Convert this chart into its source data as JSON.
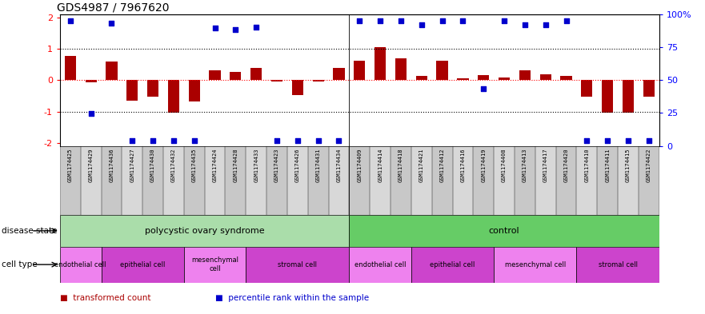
{
  "title": "GDS4987 / 7967620",
  "samples": [
    "GSM1174425",
    "GSM1174429",
    "GSM1174436",
    "GSM1174427",
    "GSM1174430",
    "GSM1174432",
    "GSM1174435",
    "GSM1174424",
    "GSM1174428",
    "GSM1174433",
    "GSM1174423",
    "GSM1174426",
    "GSM1174431",
    "GSM1174434",
    "GSM1174409",
    "GSM1174414",
    "GSM1174418",
    "GSM1174421",
    "GSM1174412",
    "GSM1174416",
    "GSM1174419",
    "GSM1174408",
    "GSM1174413",
    "GSM1174417",
    "GSM1174420",
    "GSM1174410",
    "GSM1174411",
    "GSM1174415",
    "GSM1174422"
  ],
  "bar_values": [
    0.78,
    -0.08,
    0.58,
    -0.65,
    -0.52,
    -1.05,
    -0.68,
    0.32,
    0.27,
    0.38,
    -0.05,
    -0.48,
    -0.05,
    0.38,
    0.62,
    1.05,
    0.68,
    0.12,
    0.62,
    0.05,
    0.15,
    0.08,
    0.32,
    0.18,
    0.12,
    -0.52,
    -1.05,
    -1.05,
    -0.52
  ],
  "dot_values": [
    1.88,
    -1.07,
    1.82,
    -1.92,
    -1.92,
    -1.92,
    -1.92,
    1.65,
    1.6,
    1.68,
    -1.92,
    -1.92,
    -1.92,
    -1.92,
    1.88,
    1.88,
    1.88,
    1.75,
    1.88,
    1.88,
    -0.28,
    1.88,
    1.75,
    1.75,
    1.88,
    -1.92,
    -1.92,
    -1.92,
    -1.92
  ],
  "disease_state_groups": [
    {
      "label": "polycystic ovary syndrome",
      "start": 0,
      "end": 14,
      "color": "#aaddaa"
    },
    {
      "label": "control",
      "start": 14,
      "end": 29,
      "color": "#66cc66"
    }
  ],
  "cell_type_groups": [
    {
      "label": "endothelial cell",
      "start": 0,
      "end": 2,
      "color": "#ee82ee"
    },
    {
      "label": "epithelial cell",
      "start": 2,
      "end": 6,
      "color": "#cc44cc"
    },
    {
      "label": "mesenchymal\ncell",
      "start": 6,
      "end": 9,
      "color": "#ee82ee"
    },
    {
      "label": "stromal cell",
      "start": 9,
      "end": 14,
      "color": "#cc44cc"
    },
    {
      "label": "endothelial cell",
      "start": 14,
      "end": 17,
      "color": "#ee82ee"
    },
    {
      "label": "epithelial cell",
      "start": 17,
      "end": 21,
      "color": "#cc44cc"
    },
    {
      "label": "mesenchymal cell",
      "start": 21,
      "end": 25,
      "color": "#ee82ee"
    },
    {
      "label": "stromal cell",
      "start": 25,
      "end": 29,
      "color": "#cc44cc"
    }
  ],
  "bar_color": "#aa0000",
  "dot_color": "#0000cc",
  "ylim": [
    -2.1,
    2.1
  ],
  "y2lim": [
    0,
    100
  ],
  "yticks": [
    -2,
    -1,
    0,
    1,
    2
  ],
  "y2ticks": [
    0,
    25,
    50,
    75,
    100
  ],
  "legend_items": [
    {
      "label": "transformed count",
      "color": "#aa0000"
    },
    {
      "label": "percentile rank within the sample",
      "color": "#0000cc"
    }
  ],
  "disease_label": "disease state",
  "cell_label": "cell type",
  "col_colors": [
    "#c8c8c8",
    "#d8d8d8"
  ]
}
